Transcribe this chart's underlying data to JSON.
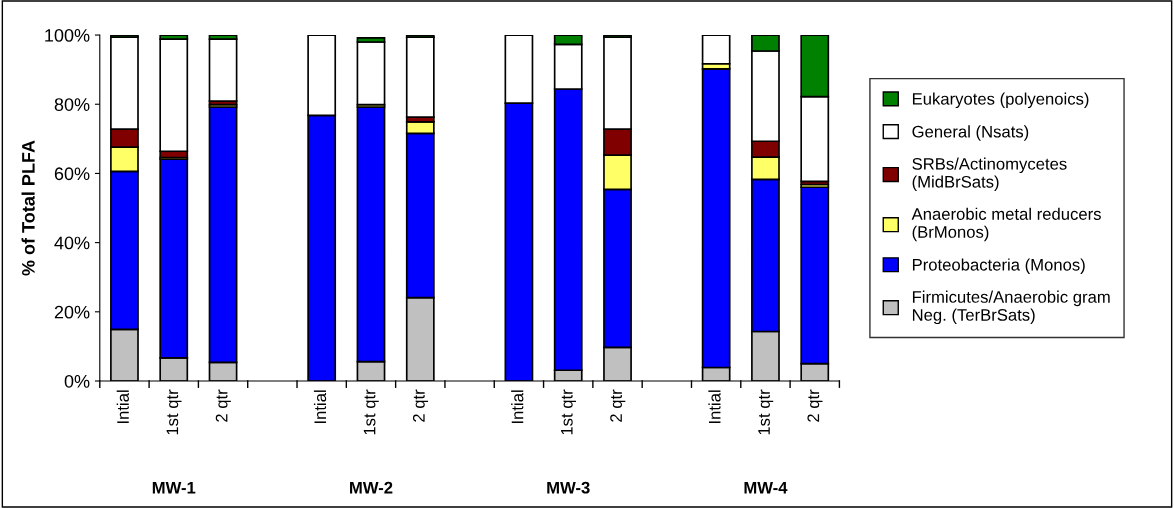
{
  "chart_data": {
    "type": "bar",
    "stacked": true,
    "ylabel": "% of Total PLFA",
    "categories": [
      "Intial",
      "1st qtr",
      "2 qtr",
      null,
      "Intial",
      "1st qtr",
      "2 qtr",
      null,
      "Intial",
      "1st qtr",
      "2 qtr",
      null,
      "Intial",
      "1st qtr",
      "2 qtr"
    ],
    "series": [
      {
        "name": "Firmicutes/Anaerobic gram\nNeg. (TerBrSats)",
        "color": "#c0c0c0",
        "values": [
          14.9,
          6.7,
          5.4,
          null,
          0,
          5.6,
          24.1,
          null,
          0,
          3.1,
          9.7,
          null,
          3.9,
          14.3,
          5.0
        ]
      },
      {
        "name": "Proteobacteria (Monos)",
        "color": "#0000ff",
        "values": [
          45.7,
          57.4,
          73.8,
          null,
          76.8,
          73.6,
          47.5,
          null,
          80.3,
          81.3,
          45.7,
          null,
          86.3,
          44.0,
          51.0
        ]
      },
      {
        "name": "Anaerobic metal reducers\n(BrMonos)",
        "color": "#ffff66",
        "values": [
          7.0,
          0.5,
          0.7,
          null,
          0,
          0.7,
          3.3,
          null,
          0,
          0,
          9.9,
          null,
          1.5,
          6.4,
          0.8
        ]
      },
      {
        "name": "SRBs/Actinomycetes\n(MidBrSats)",
        "color": "#800000",
        "values": [
          5.2,
          1.8,
          1.0,
          null,
          0,
          null,
          1.4,
          null,
          0,
          0,
          7.5,
          null,
          0,
          4.6,
          0.9
        ]
      },
      {
        "name": "General (Nsats)",
        "color": "#ffffff",
        "values": [
          26.6,
          32.4,
          17.9,
          null,
          23.2,
          18.1,
          23.1,
          null,
          19.7,
          12.9,
          26.6,
          null,
          8.3,
          26.1,
          24.5
        ]
      },
      {
        "name": "Eukaryotes (polyenoics)",
        "color": "#008000",
        "values": [
          0.6,
          1.2,
          1.2,
          null,
          0,
          1.2,
          0.6,
          null,
          0,
          2.7,
          0.6,
          null,
          0,
          4.6,
          17.8
        ]
      }
    ],
    "ylim": [
      0,
      100
    ],
    "yticks": [
      {
        "value": 0,
        "label": "0%"
      },
      {
        "value": 20,
        "label": "20%"
      },
      {
        "value": 40,
        "label": "40%"
      },
      {
        "value": 60,
        "label": "60%"
      },
      {
        "value": 80,
        "label": "80%"
      },
      {
        "value": 100,
        "label": "100%"
      }
    ],
    "annotations": [
      "MW-1",
      "MW-2",
      "MW-3",
      "MW-4"
    ],
    "legend": "right",
    "grid": false
  }
}
